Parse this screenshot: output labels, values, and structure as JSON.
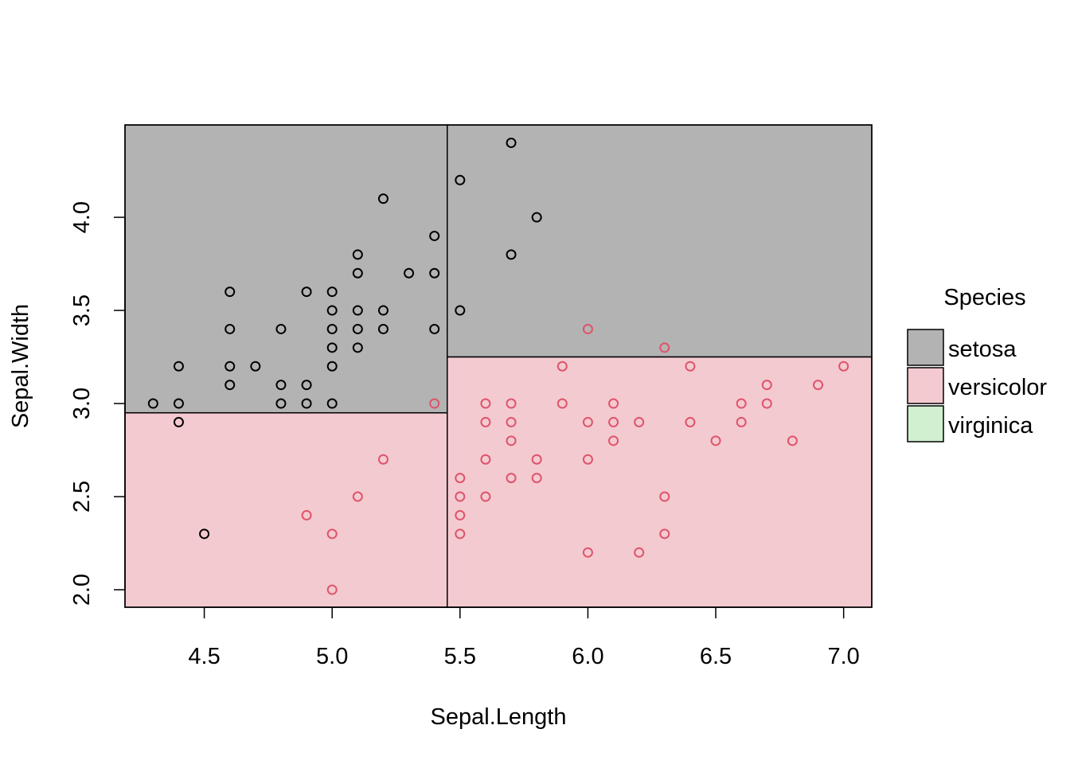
{
  "chart_data": {
    "type": "scatter",
    "title": "",
    "xlabel": "Sepal.Length",
    "ylabel": "Sepal.Width",
    "xlim": [
      4.19,
      7.11
    ],
    "ylim": [
      1.906,
      4.496
    ],
    "xticks": [
      4.5,
      5.0,
      5.5,
      6.0,
      6.5,
      7.0
    ],
    "xtick_labels": [
      "4.5",
      "5.0",
      "5.5",
      "6.0",
      "6.5",
      "7.0"
    ],
    "yticks": [
      2.0,
      2.5,
      3.0,
      3.5,
      4.0
    ],
    "ytick_labels": [
      "2.0",
      "2.5",
      "3.0",
      "3.5",
      "4.0"
    ],
    "grid": false,
    "legend": {
      "title": "Species",
      "placement": "right",
      "entries": [
        {
          "label": "setosa",
          "fill": "#b3b3b3"
        },
        {
          "label": "versicolor",
          "fill": "#f3cad0"
        },
        {
          "label": "virginica",
          "fill": "#d0f0cf"
        }
      ]
    },
    "regions": [
      {
        "class": "setosa",
        "x": [
          4.19,
          5.45
        ],
        "y": [
          2.95,
          4.496
        ],
        "fill": "#b3b3b3"
      },
      {
        "class": "versicolor",
        "x": [
          4.19,
          5.45
        ],
        "y": [
          1.906,
          2.95
        ],
        "fill": "#f3cad0"
      },
      {
        "class": "setosa",
        "x": [
          5.45,
          7.11
        ],
        "y": [
          3.25,
          4.496
        ],
        "fill": "#b3b3b3"
      },
      {
        "class": "versicolor",
        "x": [
          5.45,
          7.11
        ],
        "y": [
          1.906,
          3.25
        ],
        "fill": "#f3cad0"
      }
    ],
    "series": [
      {
        "name": "setosa",
        "color": "#000000",
        "points": [
          [
            4.3,
            3.0
          ],
          [
            4.4,
            3.0
          ],
          [
            4.4,
            3.2
          ],
          [
            4.4,
            2.9
          ],
          [
            4.5,
            2.3
          ],
          [
            4.6,
            3.6
          ],
          [
            4.6,
            3.4
          ],
          [
            4.6,
            3.2
          ],
          [
            4.6,
            3.1
          ],
          [
            4.7,
            3.2
          ],
          [
            4.8,
            3.4
          ],
          [
            4.8,
            3.1
          ],
          [
            4.8,
            3.0
          ],
          [
            4.9,
            3.6
          ],
          [
            4.9,
            3.1
          ],
          [
            4.9,
            3.0
          ],
          [
            5.0,
            3.6
          ],
          [
            5.0,
            3.5
          ],
          [
            5.0,
            3.4
          ],
          [
            5.0,
            3.3
          ],
          [
            5.0,
            3.2
          ],
          [
            5.0,
            3.0
          ],
          [
            5.1,
            3.8
          ],
          [
            5.1,
            3.7
          ],
          [
            5.1,
            3.5
          ],
          [
            5.1,
            3.4
          ],
          [
            5.1,
            3.3
          ],
          [
            5.2,
            4.1
          ],
          [
            5.2,
            3.5
          ],
          [
            5.2,
            3.4
          ],
          [
            5.3,
            3.7
          ],
          [
            5.4,
            3.9
          ],
          [
            5.4,
            3.7
          ],
          [
            5.4,
            3.4
          ],
          [
            5.5,
            4.2
          ],
          [
            5.5,
            3.5
          ],
          [
            5.7,
            4.4
          ],
          [
            5.7,
            3.8
          ],
          [
            5.8,
            4.0
          ]
        ]
      },
      {
        "name": "versicolor",
        "color": "#DF536B",
        "points": [
          [
            4.9,
            2.4
          ],
          [
            5.0,
            2.3
          ],
          [
            5.0,
            2.0
          ],
          [
            5.1,
            2.5
          ],
          [
            5.2,
            2.7
          ],
          [
            5.4,
            3.0
          ],
          [
            5.5,
            2.6
          ],
          [
            5.5,
            2.5
          ],
          [
            5.5,
            2.4
          ],
          [
            5.5,
            2.3
          ],
          [
            5.6,
            3.0
          ],
          [
            5.6,
            2.9
          ],
          [
            5.6,
            2.7
          ],
          [
            5.6,
            2.5
          ],
          [
            5.7,
            3.0
          ],
          [
            5.7,
            2.9
          ],
          [
            5.7,
            2.8
          ],
          [
            5.7,
            2.6
          ],
          [
            5.8,
            2.7
          ],
          [
            5.8,
            2.6
          ],
          [
            5.9,
            3.2
          ],
          [
            5.9,
            3.0
          ],
          [
            6.0,
            3.4
          ],
          [
            6.0,
            2.9
          ],
          [
            6.0,
            2.7
          ],
          [
            6.0,
            2.2
          ],
          [
            6.1,
            3.0
          ],
          [
            6.1,
            2.9
          ],
          [
            6.1,
            2.8
          ],
          [
            6.2,
            2.9
          ],
          [
            6.2,
            2.2
          ],
          [
            6.3,
            3.3
          ],
          [
            6.3,
            2.5
          ],
          [
            6.3,
            2.3
          ],
          [
            6.4,
            3.2
          ],
          [
            6.4,
            2.9
          ],
          [
            6.5,
            2.8
          ],
          [
            6.6,
            3.0
          ],
          [
            6.6,
            2.9
          ],
          [
            6.7,
            3.1
          ],
          [
            6.7,
            3.0
          ],
          [
            6.8,
            2.8
          ],
          [
            6.9,
            3.1
          ],
          [
            7.0,
            3.2
          ]
        ]
      }
    ]
  }
}
